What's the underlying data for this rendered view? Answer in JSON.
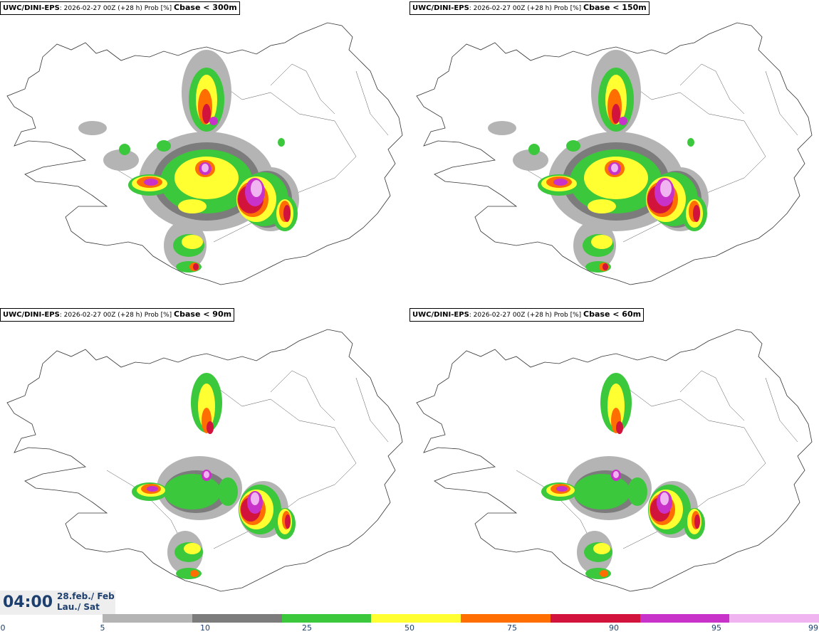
{
  "panels": [
    {
      "model": "UWC/DINI-EPS",
      "info": ": 2026-02-27 00Z (+28 h) Prob [%] ",
      "threshold": "Cbase < 300m"
    },
    {
      "model": "UWC/DINI-EPS",
      "info": ": 2026-02-27 00Z (+28 h) Prob [%] ",
      "threshold": "Cbase < 150m"
    },
    {
      "model": "UWC/DINI-EPS",
      "info": ": 2026-02-27 00Z (+28 h) Prob [%] ",
      "threshold": "Cbase < 90m"
    },
    {
      "model": "UWC/DINI-EPS",
      "info": ": 2026-02-27 00Z (+28 h) Prob [%] ",
      "threshold": "Cbase < 60m"
    }
  ],
  "valid_time": {
    "time": "04:00",
    "date_line1": "28.feb./ Feb",
    "date_line2": "Lau./ Sat"
  },
  "legend": {
    "ticks": [
      "0",
      "5",
      "10",
      "25",
      "50",
      "75",
      "90",
      "95",
      "99"
    ],
    "colors": [
      "#b4b4b4",
      "#7c7c7c",
      "#3cc83c",
      "#ffff32",
      "#ff6e00",
      "#d2143c",
      "#c832c8",
      "#f0b4f0"
    ]
  }
}
